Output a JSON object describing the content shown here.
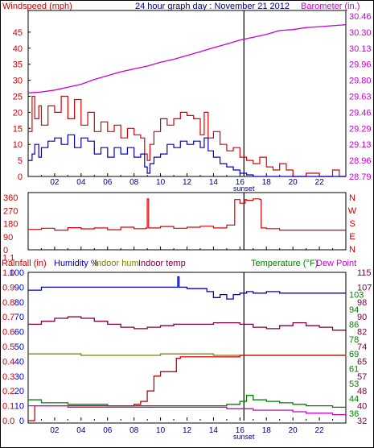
{
  "colors": {
    "wind_speed": "#0000cc",
    "wind_gust": "#dd0000",
    "barometer": "#cc00cc",
    "wind_dir": "#dd0000",
    "humidity": "#0000cc",
    "indoor_hum": "#808000",
    "indoor_temp": "#800040",
    "rainfall": "#cc0000",
    "temperature": "#008000",
    "dew_point": "#cc00cc",
    "title": "#000080"
  },
  "x_ticks": [
    "02",
    "04",
    "06",
    "08",
    "10",
    "12",
    "14",
    "16",
    "18",
    "20",
    "22"
  ],
  "sunset_label": "sunset",
  "chart_data": [
    {
      "type": "line",
      "title": "24 hour graph day : November 21 2012",
      "left_label": "Windspeed (mph)",
      "right_label": "Barometer (in.)",
      "y_left_ticks": [
        "0",
        "5",
        "10",
        "15",
        "20",
        "25",
        "30",
        "35",
        "40",
        "45"
      ],
      "y_right_ticks": [
        "28.79",
        "28.96",
        "29.13",
        "29.29",
        "29.46",
        "29.63",
        "29.80",
        "29.96",
        "30.13",
        "30.30",
        "30.46"
      ],
      "ylim_left": [
        0,
        50
      ],
      "ylim_right": [
        28.79,
        30.46
      ],
      "xlim": [
        0,
        24
      ],
      "series": [
        {
          "name": "Windspeed (mph)",
          "axis": "left",
          "x": [
            0,
            0.3,
            0.5,
            0.8,
            1,
            1.5,
            2,
            2.5,
            3,
            3.5,
            4,
            4.5,
            5,
            5.5,
            6,
            6.5,
            7,
            7.5,
            8,
            8.5,
            8.8,
            9,
            9.2,
            9.5,
            10,
            10.5,
            11,
            11.5,
            12,
            12.5,
            13,
            13.3,
            13.6,
            14,
            14.5,
            15,
            15.5,
            16,
            16.5,
            17,
            17.5,
            18,
            18.5,
            19,
            20,
            21,
            22,
            23,
            24
          ],
          "values": [
            5,
            7,
            10,
            6,
            9,
            11,
            12,
            10,
            13,
            9,
            12,
            11,
            7,
            9,
            6,
            9,
            7,
            9,
            6,
            7,
            3,
            1,
            4,
            6,
            7,
            10,
            9,
            11,
            10,
            11,
            9,
            12,
            8,
            6,
            4,
            3,
            2,
            1,
            0.5,
            0,
            0,
            0,
            0,
            0,
            0,
            0,
            0,
            0,
            0
          ]
        },
        {
          "name": "Wind gust (mph)",
          "axis": "left",
          "x": [
            0,
            0.3,
            0.5,
            0.8,
            1,
            1.5,
            2,
            2.5,
            3,
            3.5,
            4,
            4.5,
            5,
            5.5,
            6,
            6.5,
            7,
            7.5,
            8,
            8.5,
            8.8,
            9,
            9.2,
            9.5,
            10,
            10.5,
            11,
            11.5,
            12,
            12.5,
            13,
            13.3,
            13.6,
            14,
            14.5,
            15,
            15.5,
            16,
            16.5,
            17,
            17.5,
            18,
            18.5,
            19,
            19.5,
            20,
            21,
            22,
            23,
            23.5,
            24
          ],
          "values": [
            14,
            25,
            18,
            22,
            16,
            22,
            20,
            25,
            18,
            24,
            16,
            20,
            14,
            17,
            14,
            16,
            12,
            15,
            13,
            12,
            7,
            5,
            10,
            14,
            18,
            16,
            18,
            20,
            19,
            18,
            13,
            20,
            12,
            14,
            10,
            8,
            9,
            6,
            5,
            4,
            6,
            3,
            2,
            4,
            2,
            0,
            1,
            0,
            2,
            0,
            0
          ]
        },
        {
          "name": "Barometer (in.)",
          "axis": "right",
          "x": [
            0,
            1,
            2,
            3,
            4,
            5,
            6,
            7,
            8,
            9,
            10,
            11,
            12,
            13,
            14,
            15,
            16,
            17,
            18,
            19,
            20,
            21,
            22,
            23,
            24
          ],
          "values": [
            29.66,
            29.67,
            29.69,
            29.72,
            29.75,
            29.8,
            29.84,
            29.88,
            29.91,
            29.94,
            29.98,
            30.01,
            30.05,
            30.09,
            30.13,
            30.17,
            30.21,
            30.24,
            30.27,
            30.31,
            30.32,
            30.34,
            30.35,
            30.36,
            30.37
          ]
        }
      ]
    },
    {
      "type": "line",
      "title": "",
      "right_label_letters": [
        "N",
        "W",
        "S",
        "E",
        "N"
      ],
      "y_left_ticks": [
        "0",
        "90",
        "180",
        "270",
        "360"
      ],
      "ylim": [
        0,
        380
      ],
      "xlim": [
        0,
        24
      ],
      "series": [
        {
          "name": "Wind direction",
          "x": [
            0,
            1,
            2,
            3,
            4,
            5,
            6,
            7,
            8,
            8.9,
            9,
            9.1,
            10,
            11,
            12,
            13,
            14,
            15,
            15.5,
            15.6,
            16,
            16.4,
            16.5,
            17,
            17.5,
            17.6,
            18,
            19,
            20,
            21,
            22,
            23,
            24
          ],
          "values": [
            140,
            148,
            135,
            152,
            144,
            150,
            138,
            155,
            145,
            150,
            350,
            150,
            160,
            148,
            155,
            162,
            150,
            170,
            170,
            345,
            320,
            345,
            340,
            350,
            345,
            150,
            145,
            135,
            135,
            135,
            135,
            135,
            135
          ]
        }
      ]
    },
    {
      "type": "line",
      "title": "",
      "left_labels": [
        "Rainfall (in)",
        "Humidity %",
        "Indoor hum",
        "Indoor temp"
      ],
      "right_labels": [
        "Temperature (°F)",
        "Dew Point"
      ],
      "y_rain_ticks": [
        "0.0",
        "0.1",
        "0.2",
        "0.3",
        "0.4",
        "0.5",
        "0.6",
        "0.7",
        "0.8",
        "0.9",
        "1.0",
        "1.1"
      ],
      "y_humidity_ticks": [
        "0",
        "10",
        "20",
        "30",
        "40",
        "50",
        "60",
        "70",
        "80",
        "90",
        "100"
      ],
      "y_temp_ticks_a": [
        "32",
        "40",
        "48",
        "57",
        "65",
        "74",
        "82",
        "90",
        "98",
        "107",
        "115"
      ],
      "y_temp_ticks_b": [
        "36",
        "44",
        "53",
        "61",
        "69",
        "78",
        "86",
        "94",
        "103"
      ],
      "ylim_humidity": [
        0,
        100
      ],
      "xlim": [
        0,
        24
      ],
      "series": [
        {
          "name": "Humidity %",
          "x": [
            0,
            1,
            2,
            3,
            4,
            5,
            6,
            7,
            8,
            9,
            10,
            11,
            11.3,
            11.4,
            12,
            13,
            13.5,
            14,
            14.5,
            15,
            15.5,
            16,
            16.5,
            17,
            18,
            19,
            20,
            21,
            22,
            23,
            24
          ],
          "values": [
            88,
            90,
            90,
            90,
            90,
            90,
            90,
            90,
            90,
            90,
            90,
            90,
            97,
            90,
            89,
            89,
            87,
            83,
            85,
            82,
            85,
            86,
            87,
            86,
            87,
            86,
            86,
            86,
            86,
            86,
            86
          ]
        },
        {
          "name": "Indoor hum",
          "x": [
            0,
            2,
            4,
            6,
            8,
            10,
            12,
            14,
            16,
            18,
            20,
            22,
            24
          ],
          "values": [
            45,
            45,
            44,
            44,
            44,
            45,
            45,
            44,
            44,
            44,
            44,
            44,
            45
          ]
        },
        {
          "name": "Indoor temp",
          "x": [
            0,
            1,
            2,
            3,
            4,
            5,
            6,
            7,
            8,
            9,
            10,
            11,
            12,
            13,
            14,
            15,
            16,
            17,
            18,
            19,
            20,
            21,
            22,
            23,
            24
          ],
          "values": [
            65,
            67,
            69,
            70,
            69,
            67,
            65,
            63,
            62,
            63,
            64,
            65,
            65,
            65,
            66,
            66,
            65,
            63,
            62,
            64,
            66,
            64,
            63,
            61,
            60
          ]
        },
        {
          "name": "Rainfall (in)",
          "x": [
            0,
            0.5,
            1,
            2,
            3,
            4,
            5,
            6,
            7,
            8,
            8.5,
            9,
            9.5,
            10,
            11,
            11.2,
            11.5,
            12,
            13,
            14,
            15,
            16,
            18,
            20,
            22,
            24
          ],
          "values": [
            0,
            0.1,
            0.1,
            0.1,
            0.1,
            0.1,
            0.1,
            0.1,
            0.1,
            0.11,
            0.13,
            0.2,
            0.3,
            0.33,
            0.33,
            0.42,
            0.43,
            0.43,
            0.43,
            0.43,
            0.43,
            0.44,
            0.44,
            0.44,
            0.44,
            0.44
          ]
        },
        {
          "name": "Temperature (°F)",
          "x": [
            0,
            1,
            2,
            3,
            4,
            5,
            6,
            7,
            8,
            9,
            10,
            11,
            12,
            13,
            14,
            15,
            16,
            16.5,
            17,
            18,
            19,
            20,
            21,
            22,
            23,
            24
          ],
          "values": [
            14,
            12,
            12,
            11,
            11,
            11,
            10,
            10,
            10,
            10,
            10,
            10,
            10,
            10,
            10,
            11,
            13,
            17,
            14,
            13,
            12,
            11,
            10,
            10,
            9,
            9
          ]
        },
        {
          "name": "Dew Point",
          "x": [
            0,
            1,
            2,
            3,
            4,
            5,
            6,
            7,
            8,
            9,
            10,
            11,
            12,
            13,
            14,
            15,
            16,
            17,
            18,
            19,
            20,
            21,
            22,
            23,
            24
          ],
          "values": [
            10,
            10,
            10,
            9,
            9,
            9,
            9,
            9,
            9,
            9,
            9,
            9,
            9,
            9,
            9,
            8,
            8,
            7,
            7,
            7,
            6,
            5,
            5,
            4,
            4
          ]
        }
      ]
    }
  ]
}
